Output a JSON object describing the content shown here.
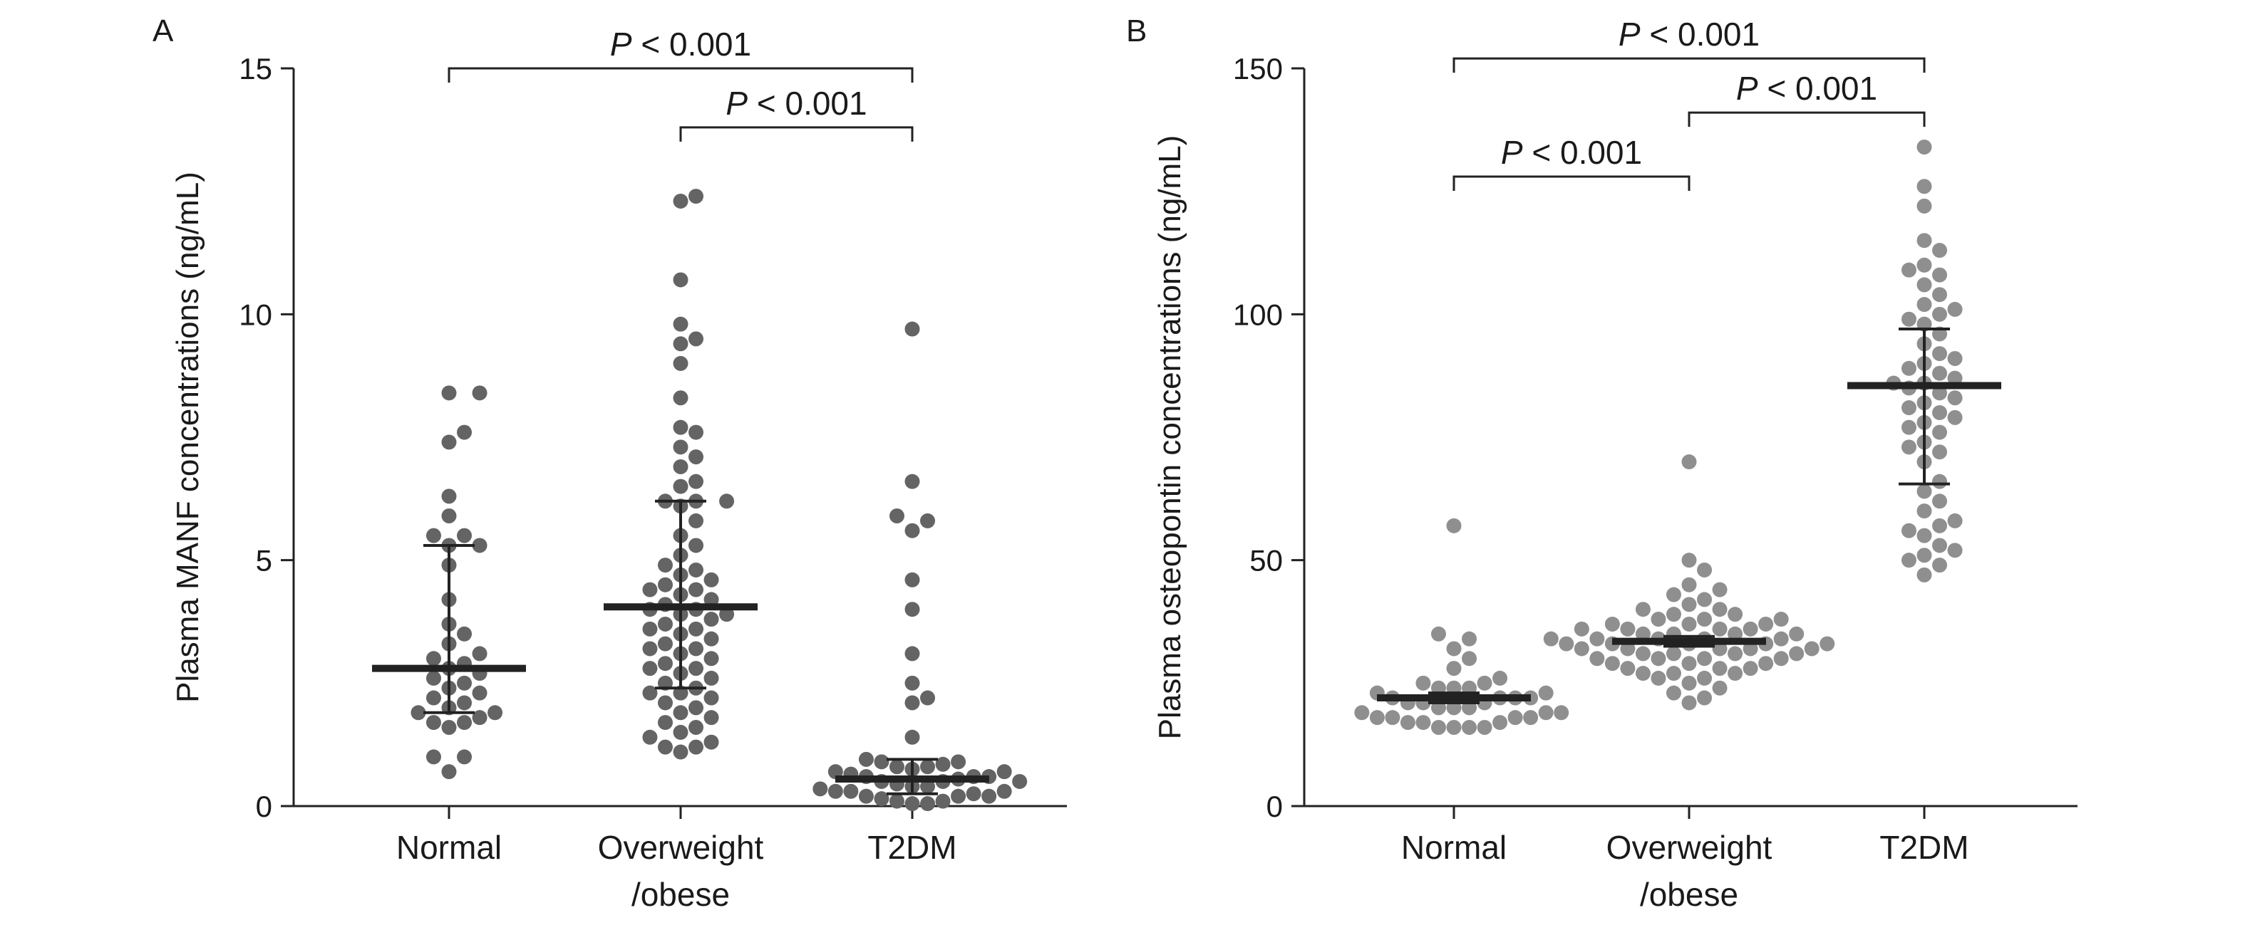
{
  "colors": {
    "panel_a_points": "#646464",
    "panel_b_points": "#8f8f8f",
    "axis": "#222222",
    "text": "#1a1a1a"
  },
  "chart_data": [
    {
      "type": "scatter",
      "panel": "A",
      "ylabel": "Plasma MANF concentrations (ng/mL)",
      "xlabel": "",
      "ylim": [
        0,
        15
      ],
      "yticks": [
        "0",
        "5",
        "10",
        "15"
      ],
      "categories": [
        {
          "lines": [
            "Normal"
          ]
        },
        {
          "lines": [
            "Overweight",
            "/obese"
          ]
        },
        {
          "lines": [
            "T2DM"
          ]
        }
      ],
      "groups": [
        {
          "median": 2.8,
          "q1": 1.9,
          "q3": 5.3,
          "values": [
            8.4,
            8.4,
            7.6,
            7.4,
            6.3,
            5.9,
            5.5,
            5.5,
            5.3,
            5.3,
            4.9,
            4.2,
            3.7,
            3.5,
            3.1,
            3.0,
            2.8,
            2.7,
            2.5,
            2.4,
            2.3,
            2.2,
            2.1,
            1.9,
            1.9,
            1.8,
            1.7,
            1.7,
            1.6,
            1.0,
            1.0,
            0.7,
            2.6,
            3.3,
            2.0,
            2.9
          ]
        },
        {
          "median": 4.05,
          "q1": 2.4,
          "q3": 6.2,
          "values": [
            12.4,
            12.3,
            10.7,
            9.8,
            9.5,
            9.4,
            9.0,
            8.3,
            7.7,
            7.6,
            7.3,
            7.1,
            6.9,
            6.6,
            6.5,
            6.2,
            6.2,
            6.2,
            6.1,
            5.8,
            5.5,
            5.3,
            5.1,
            4.9,
            4.8,
            4.7,
            4.6,
            4.5,
            4.4,
            4.3,
            4.2,
            4.1,
            4.0,
            3.9,
            3.8,
            3.7,
            3.6,
            3.5,
            3.4,
            3.3,
            3.2,
            3.1,
            3.0,
            2.9,
            2.8,
            2.7,
            2.6,
            2.5,
            2.4,
            2.3,
            2.2,
            2.1,
            2.0,
            1.9,
            1.8,
            1.7,
            1.6,
            1.5,
            1.4,
            1.3,
            1.2,
            1.2,
            1.1,
            3.6,
            4.0,
            2.8,
            3.9,
            4.4,
            2.3,
            3.2
          ]
        },
        {
          "median": 0.55,
          "q1": 0.25,
          "q3": 0.95,
          "values": [
            9.7,
            6.6,
            5.9,
            5.8,
            5.6,
            4.6,
            4.0,
            3.1,
            2.5,
            2.2,
            2.1,
            1.4,
            0.95,
            0.9,
            0.9,
            0.85,
            0.8,
            0.8,
            0.75,
            0.7,
            0.7,
            0.65,
            0.6,
            0.6,
            0.55,
            0.5,
            0.5,
            0.45,
            0.4,
            0.4,
            0.35,
            0.3,
            0.3,
            0.25,
            0.2,
            0.2,
            0.15,
            0.1,
            0.1,
            0.05,
            0.05,
            0.3,
            0.5,
            0.6,
            0.2
          ]
        }
      ],
      "comparisons": [
        {
          "from": 0,
          "to": 2,
          "label_p": "P",
          "label_rest": " < 0.001",
          "level": 15
        },
        {
          "from": 1,
          "to": 2,
          "label_p": "P",
          "label_rest": " < 0.001",
          "level": 13.8
        }
      ]
    },
    {
      "type": "scatter",
      "panel": "B",
      "ylabel": "Plasma osteopontin concentrations (ng/mL)",
      "xlabel": "",
      "ylim": [
        0,
        150
      ],
      "yticks": [
        "0",
        "50",
        "100",
        "150"
      ],
      "categories": [
        {
          "lines": [
            "Normal"
          ]
        },
        {
          "lines": [
            "Overweight",
            "/obese"
          ]
        },
        {
          "lines": [
            "T2DM"
          ]
        }
      ],
      "groups": [
        {
          "median": 22.0,
          "q1": 21.0,
          "q3": 23.0,
          "values": [
            57,
            35,
            34,
            32,
            30,
            28,
            26,
            25,
            25,
            24,
            24,
            23,
            23,
            22,
            22,
            22,
            21,
            21,
            21,
            20,
            20,
            19,
            19,
            18,
            18,
            18,
            17,
            17,
            16,
            16,
            16,
            16,
            24,
            22,
            20,
            19,
            18,
            17
          ]
        },
        {
          "median": 33.5,
          "q1": 32.5,
          "q3": 34.5,
          "values": [
            70,
            50,
            48,
            45,
            44,
            43,
            42,
            41,
            40,
            40,
            39,
            39,
            38,
            38,
            37,
            37,
            37,
            36,
            36,
            36,
            35,
            35,
            35,
            34,
            34,
            34,
            34,
            33,
            33,
            33,
            33,
            32,
            32,
            32,
            32,
            31,
            31,
            31,
            30,
            30,
            30,
            29,
            29,
            28,
            28,
            27,
            27,
            26,
            26,
            25,
            24,
            23,
            22,
            21,
            35,
            33,
            31,
            29,
            36,
            32,
            30,
            28,
            34,
            38,
            27
          ]
        },
        {
          "median": 85.5,
          "q1": 65.5,
          "q3": 97.0,
          "values": [
            134,
            126,
            122,
            115,
            113,
            110,
            109,
            108,
            106,
            104,
            102,
            101,
            100,
            99,
            98,
            96,
            94,
            92,
            91,
            89,
            88,
            87,
            86,
            86,
            85,
            84,
            83,
            82,
            80,
            79,
            78,
            77,
            76,
            74,
            72,
            70,
            66,
            64,
            62,
            60,
            58,
            57,
            56,
            55,
            53,
            52,
            51,
            50,
            49,
            47,
            90,
            81,
            73
          ]
        }
      ],
      "comparisons": [
        {
          "from": 0,
          "to": 2,
          "label_p": "P",
          "label_rest": " < 0.001",
          "level": 152
        },
        {
          "from": 1,
          "to": 2,
          "label_p": "P",
          "label_rest": " < 0.001",
          "level": 141
        },
        {
          "from": 0,
          "to": 1,
          "label_p": "P",
          "label_rest": " < 0.001",
          "level": 128
        }
      ]
    }
  ]
}
